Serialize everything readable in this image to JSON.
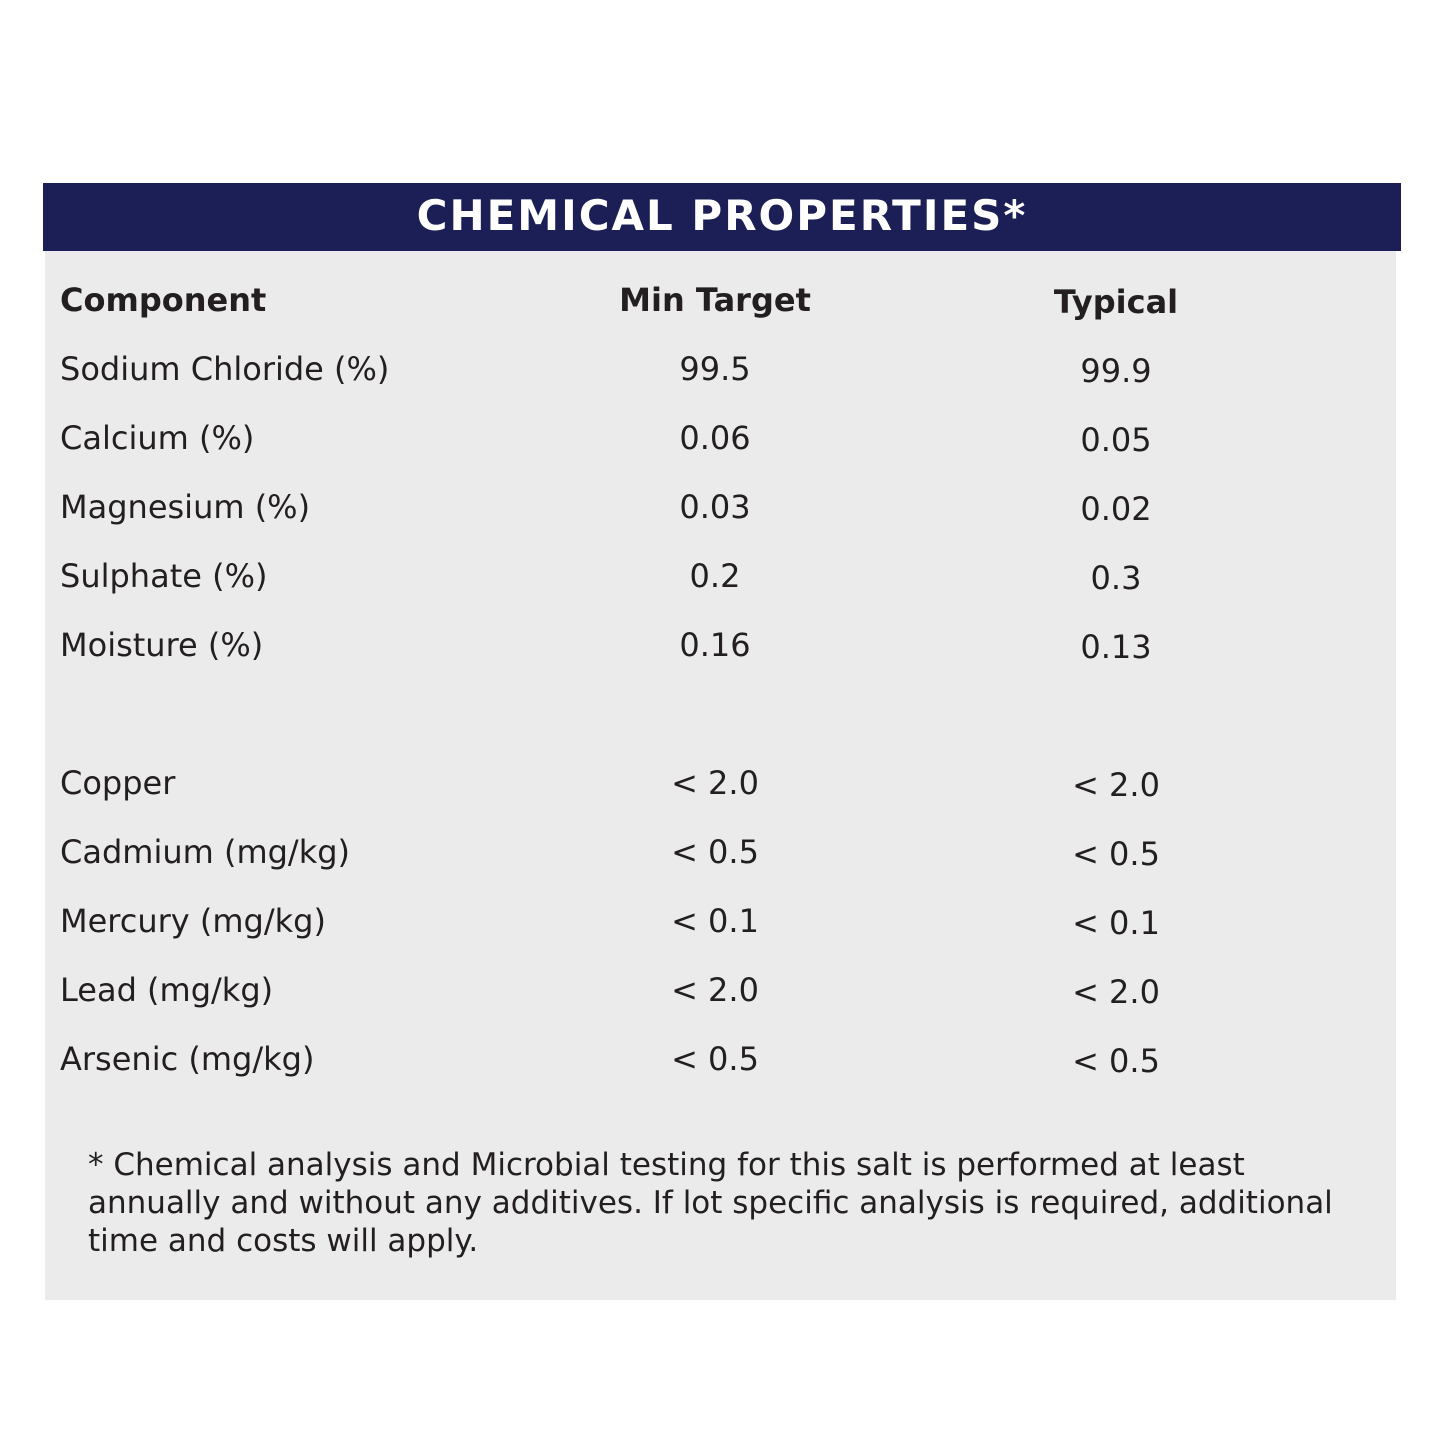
{
  "header": {
    "title": "CHEMICAL PROPERTIES*"
  },
  "table": {
    "columns": [
      "Component",
      "Min Target",
      "Typical"
    ],
    "sections": [
      [
        [
          "Sodium Chloride (%)",
          "99.5",
          "99.9"
        ],
        [
          "Calcium (%)",
          "0.06",
          "0.05"
        ],
        [
          "Magnesium (%)",
          "0.03",
          "0.02"
        ],
        [
          "Sulphate (%)",
          "0.2",
          "0.3"
        ],
        [
          "Moisture (%)",
          "0.16",
          "0.13"
        ]
      ],
      [
        [
          "Copper",
          "< 2.0",
          "< 2.0"
        ],
        [
          "Cadmium (mg/kg)",
          "< 0.5",
          "< 0.5"
        ],
        [
          "Mercury (mg/kg)",
          "< 0.1",
          "< 0.1"
        ],
        [
          "Lead (mg/kg)",
          "< 2.0",
          "< 2.0"
        ],
        [
          "Arsenic (mg/kg)",
          "< 0.5",
          "< 0.5"
        ]
      ]
    ]
  },
  "footnote": "* Chemical analysis and Microbial testing for this salt is performed at least annually and without any additives. If lot specific analysis is required, additional time and costs will apply."
}
